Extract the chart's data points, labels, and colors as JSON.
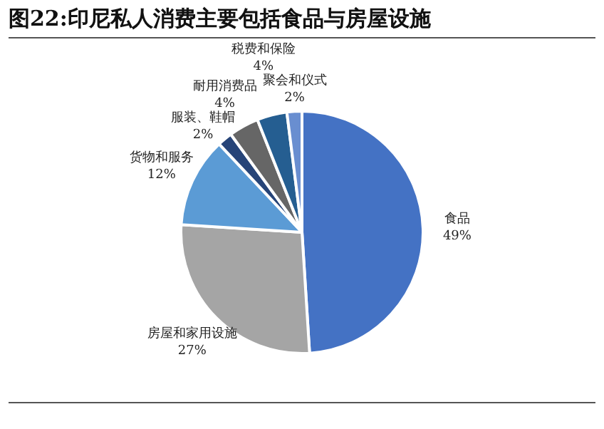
{
  "chart_data": {
    "type": "pie",
    "title": "图22:印尼私人消费主要包括食品与房屋设施",
    "categories": [
      "食品",
      "房屋和家用设施",
      "货物和服务",
      "服装、鞋帽",
      "耐用消费品",
      "税费和保险",
      "聚会和仪式"
    ],
    "values": [
      49,
      27,
      12,
      2,
      4,
      4,
      2
    ],
    "value_labels": [
      "49%",
      "27%",
      "12%",
      "2%",
      "4%",
      "4%",
      "2%"
    ],
    "colors": [
      "#4472c4",
      "#a5a5a5",
      "#5b9bd5",
      "#264478",
      "#666666",
      "#255e91",
      "#698ed0"
    ],
    "legend": false
  }
}
